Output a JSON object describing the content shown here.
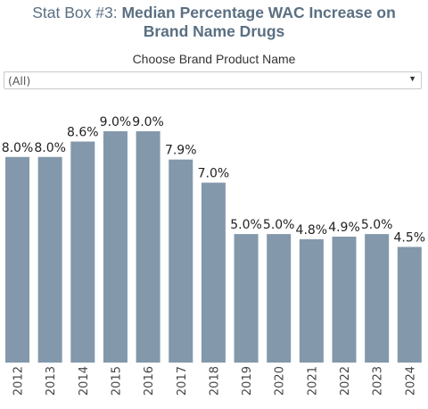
{
  "title": {
    "prefix": "Stat Box #3: ",
    "main_line1": "Median Percentage WAC Increase on",
    "main_line2": "Brand Name Drugs"
  },
  "filter": {
    "label": "Choose Brand Product Name",
    "value": "(All)",
    "arrow": "▼"
  },
  "colors": {
    "bar": "#8398aa",
    "title": "#5a6f82"
  },
  "chart_data": {
    "type": "bar",
    "categories": [
      "2012",
      "2013",
      "2014",
      "2015",
      "2016",
      "2017",
      "2018",
      "2019",
      "2020",
      "2021",
      "2022",
      "2023",
      "2024"
    ],
    "values": [
      8.0,
      8.0,
      8.6,
      9.0,
      9.0,
      7.9,
      7.0,
      5.0,
      5.0,
      4.8,
      4.9,
      5.0,
      4.5
    ],
    "data_labels": [
      "8.0%",
      "8.0%",
      "8.6%",
      "9.0%",
      "9.0%",
      "7.9%",
      "7.0%",
      "5.0%",
      "5.0%",
      "4.8%",
      "4.9%",
      "5.0%",
      "4.5%"
    ],
    "xlabel": "",
    "ylabel": "",
    "ylim": [
      0,
      10
    ],
    "grid": false,
    "legend": "none"
  }
}
